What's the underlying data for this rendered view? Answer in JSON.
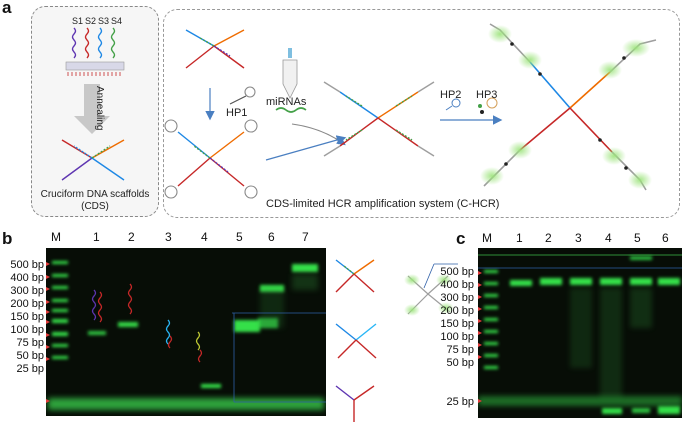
{
  "panel_a": {
    "letter": "a",
    "strand_labels": [
      "S1",
      "S2",
      "S3",
      "S4"
    ],
    "annealing": "Annealing",
    "cds_caption": "Cruciform DNA scaffolds",
    "cds_abbrev": "(CDS)",
    "hp1": "HP1",
    "mirnas": "miRNAs",
    "hp2": "HP2",
    "hp3": "HP3",
    "system_caption": "CDS-limited HCR amplification system (C-HCR)"
  },
  "panel_b": {
    "letter": "b",
    "lane_labels": [
      "M",
      "1",
      "2",
      "3",
      "4",
      "5",
      "6",
      "7"
    ],
    "ladder_labels": [
      "500 bp",
      "400 bp",
      "300 bp",
      "200 bp",
      "150 bp",
      "100 bp",
      "75 bp",
      "50 bp",
      "25 bp"
    ]
  },
  "panel_c": {
    "letter": "c",
    "lane_labels": [
      "M",
      "1",
      "2",
      "3",
      "4",
      "5",
      "6"
    ],
    "ladder_labels": [
      "500 bp",
      "400 bp",
      "300 bp",
      "200 bp",
      "150 bp",
      "100 bp",
      "75 bp",
      "50 bp",
      "25 bp"
    ]
  },
  "colors": {
    "gel_bg": "#070d06",
    "band_green": "#36e04a",
    "marker_red": "#e23b3b",
    "strand_red": "#c62828",
    "strand_blue": "#1e88e5",
    "strand_green": "#43a047",
    "strand_orange": "#ef6c00",
    "strand_purple": "#5e35b1",
    "strand_cyan": "#29b6f6",
    "strand_yellow": "#c0ca33",
    "arrow_blue": "#4a7fc1",
    "glow_green": "#9be37a"
  }
}
